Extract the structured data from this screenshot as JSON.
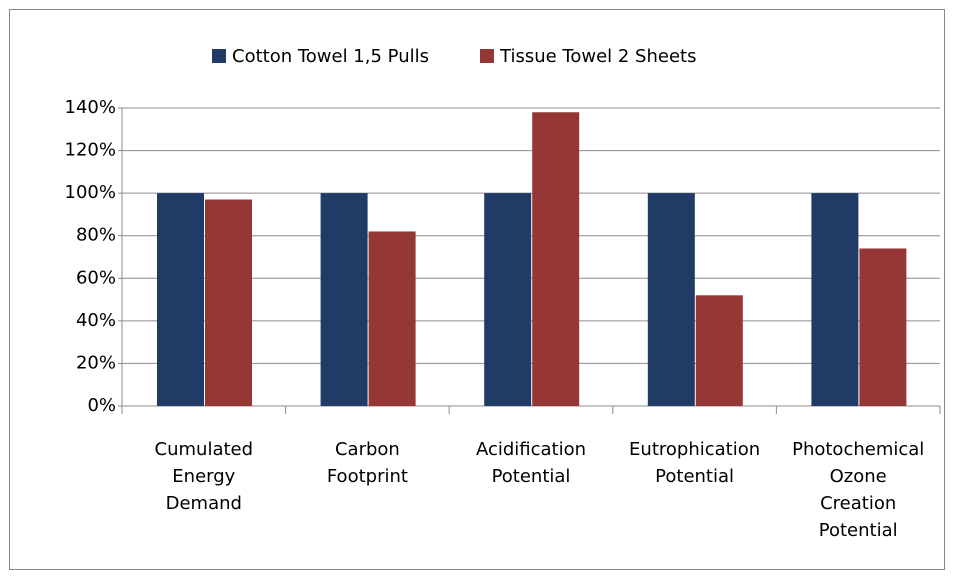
{
  "chart_data": {
    "type": "bar",
    "categories": [
      "Cumulated Energy Demand",
      "Carbon Footprint",
      "Acidification Potential",
      "Eutrophication Potential",
      "Photochemical Ozone Creation Potential"
    ],
    "series": [
      {
        "name": "Cotton Towel 1,5 Pulls",
        "color": "#1f3b66",
        "values": [
          100,
          100,
          100,
          100,
          100
        ]
      },
      {
        "name": "Tissue Towel 2 Sheets",
        "color": "#953735",
        "values": [
          97,
          82,
          138,
          52,
          74
        ]
      }
    ],
    "ylim": [
      0,
      140
    ],
    "yticks": [
      {
        "value": 0,
        "label": "0%"
      },
      {
        "value": 20,
        "label": "20%"
      },
      {
        "value": 40,
        "label": "40%"
      },
      {
        "value": 60,
        "label": "60%"
      },
      {
        "value": 80,
        "label": "80%"
      },
      {
        "value": 100,
        "label": "100%"
      },
      {
        "value": 120,
        "label": "120%"
      },
      {
        "value": 140,
        "label": "140%"
      }
    ],
    "grid": true,
    "legend": "top"
  }
}
